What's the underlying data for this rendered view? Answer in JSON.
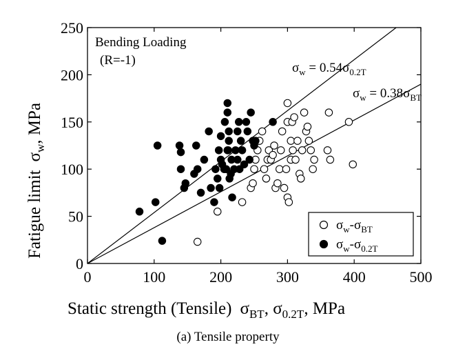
{
  "chart_data": {
    "type": "scatter",
    "caption": "(a) Tensile property",
    "annotation": {
      "line1": "Bending Loading",
      "line2": "(R=-1)"
    },
    "xlabel": {
      "prefix": "Static strength (Tensile)",
      "sym1": "σ",
      "sub1": "BT",
      "sep": ", ",
      "sym2": "σ",
      "sub2": "0.2T",
      "suffix": ", MPa"
    },
    "ylabel": {
      "prefix": "Fatigue limit",
      "sym": "σ",
      "sub": "w",
      "suffix": ", MPa"
    },
    "xlim": [
      0,
      500
    ],
    "ylim": [
      0,
      250
    ],
    "xticks": [
      0,
      100,
      200,
      300,
      400,
      500
    ],
    "yticks": [
      0,
      50,
      100,
      150,
      200,
      250
    ],
    "grid": false,
    "legend_position": "bottom-right",
    "fit_lines": [
      {
        "slope": 0.54,
        "label": {
          "sym": "σ",
          "sub": "w",
          "mid": " = 0.54",
          "sym2": "σ",
          "sub2": "0.2T"
        }
      },
      {
        "slope": 0.38,
        "label": {
          "sym": "σ",
          "sub": "w",
          "mid": " = 0.38",
          "sym2": "σ",
          "sub2": "BT"
        }
      }
    ],
    "series": [
      {
        "name": {
          "sym": "σ",
          "sub": "w",
          "dash": "-",
          "sym2": "σ",
          "sub2": "BT"
        },
        "marker": "open-circle",
        "color": "#000000",
        "points": [
          [
            165,
            23
          ],
          [
            195,
            55
          ],
          [
            232,
            65
          ],
          [
            245,
            80
          ],
          [
            248,
            85
          ],
          [
            250,
            100
          ],
          [
            252,
            110
          ],
          [
            255,
            120
          ],
          [
            258,
            130
          ],
          [
            262,
            140
          ],
          [
            265,
            100
          ],
          [
            268,
            90
          ],
          [
            270,
            110
          ],
          [
            272,
            120
          ],
          [
            275,
            110
          ],
          [
            278,
            115
          ],
          [
            280,
            125
          ],
          [
            282,
            80
          ],
          [
            285,
            85
          ],
          [
            288,
            100
          ],
          [
            290,
            120
          ],
          [
            292,
            140
          ],
          [
            295,
            80
          ],
          [
            298,
            100
          ],
          [
            300,
            70
          ],
          [
            300,
            150
          ],
          [
            300,
            170
          ],
          [
            302,
            65
          ],
          [
            305,
            110
          ],
          [
            305,
            130
          ],
          [
            307,
            150
          ],
          [
            308,
            120
          ],
          [
            310,
            155
          ],
          [
            312,
            110
          ],
          [
            315,
            130
          ],
          [
            318,
            95
          ],
          [
            320,
            90
          ],
          [
            322,
            120
          ],
          [
            325,
            160
          ],
          [
            328,
            140
          ],
          [
            330,
            145
          ],
          [
            332,
            130
          ],
          [
            335,
            120
          ],
          [
            338,
            100
          ],
          [
            340,
            110
          ],
          [
            360,
            120
          ],
          [
            362,
            160
          ],
          [
            364,
            110
          ],
          [
            392,
            150
          ],
          [
            398,
            105
          ]
        ]
      },
      {
        "name": {
          "sym": "σ",
          "sub": "w",
          "dash": "-",
          "sym2": "σ",
          "sub2": "0.2T"
        },
        "marker": "filled-circle",
        "color": "#000000",
        "points": [
          [
            78,
            55
          ],
          [
            102,
            65
          ],
          [
            105,
            125
          ],
          [
            112,
            24
          ],
          [
            138,
            125
          ],
          [
            140,
            100
          ],
          [
            140,
            118
          ],
          [
            145,
            80
          ],
          [
            147,
            85
          ],
          [
            160,
            95
          ],
          [
            163,
            125
          ],
          [
            165,
            100
          ],
          [
            170,
            75
          ],
          [
            175,
            110
          ],
          [
            182,
            140
          ],
          [
            185,
            80
          ],
          [
            190,
            65
          ],
          [
            192,
            100
          ],
          [
            195,
            90
          ],
          [
            197,
            120
          ],
          [
            198,
            80
          ],
          [
            200,
            110
          ],
          [
            200,
            135
          ],
          [
            202,
            105
          ],
          [
            205,
            100
          ],
          [
            206,
            150
          ],
          [
            208,
            100
          ],
          [
            210,
            120
          ],
          [
            210,
            160
          ],
          [
            210,
            170
          ],
          [
            211,
            120
          ],
          [
            212,
            130
          ],
          [
            212,
            140
          ],
          [
            213,
            90
          ],
          [
            215,
            95
          ],
          [
            216,
            110
          ],
          [
            217,
            70
          ],
          [
            220,
            100
          ],
          [
            222,
            120
          ],
          [
            225,
            110
          ],
          [
            225,
            140
          ],
          [
            227,
            150
          ],
          [
            228,
            100
          ],
          [
            230,
            130
          ],
          [
            232,
            120
          ],
          [
            235,
            105
          ],
          [
            238,
            150
          ],
          [
            240,
            140
          ],
          [
            243,
            110
          ],
          [
            245,
            160
          ],
          [
            248,
            130
          ],
          [
            250,
            125
          ],
          [
            252,
            130
          ],
          [
            278,
            150
          ]
        ]
      }
    ]
  }
}
